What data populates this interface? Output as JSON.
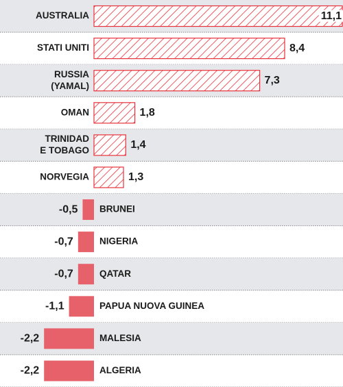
{
  "chart_data": {
    "type": "diverging-bar",
    "categories": [
      [
        "AUSTRALIA"
      ],
      [
        "STATI UNITI"
      ],
      [
        "RUSSIA",
        "(YAMAL)"
      ],
      [
        "OMAN"
      ],
      [
        "TRINIDAD",
        "E TOBAGO"
      ],
      [
        "NORVEGIA"
      ],
      [
        "BRUNEI"
      ],
      [
        "NIGERIA"
      ],
      [
        "QATAR"
      ],
      [
        "PAPUA NUOVA GUINEA"
      ],
      [
        "MALESIA"
      ],
      [
        "ALGERIA"
      ]
    ],
    "values": [
      11.1,
      8.4,
      7.3,
      1.8,
      1.4,
      1.3,
      -0.5,
      -0.7,
      -0.7,
      -1.1,
      -2.2,
      -2.2
    ],
    "value_labels": [
      "11,1",
      "8,4",
      "7,3",
      "1,8",
      "1,4",
      "1,3",
      "-0,5",
      "-0,7",
      "-0,7",
      "-1,1",
      "-2,2",
      "-2,2"
    ],
    "xlim": [
      -4.14,
      10.97
    ],
    "color": "#e8313a",
    "negative_color": "#e6616a"
  }
}
